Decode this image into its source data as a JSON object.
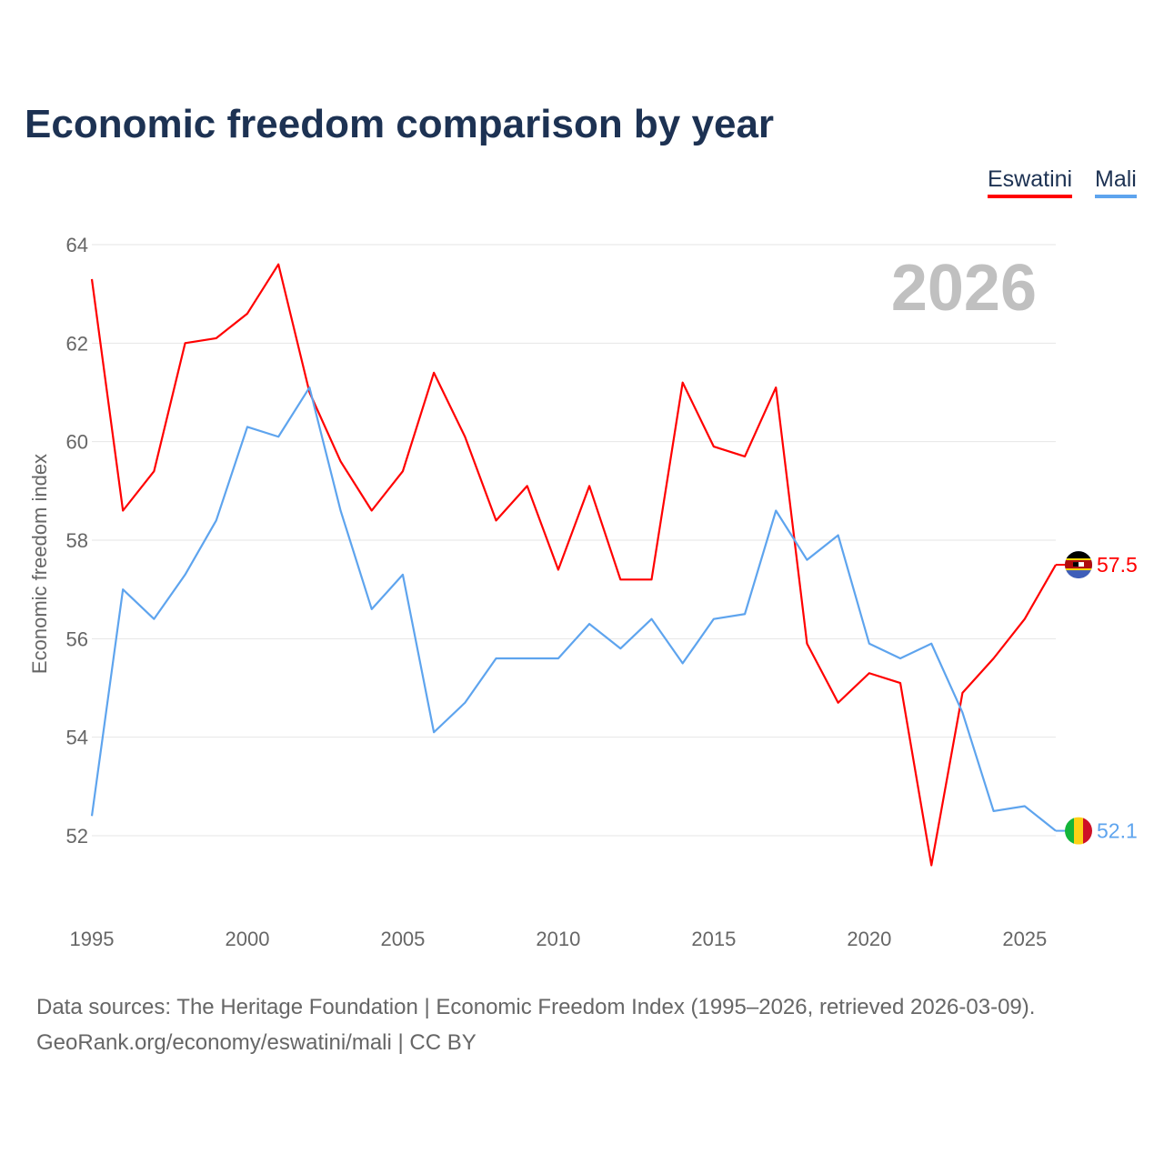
{
  "chart_data": {
    "type": "line",
    "title": "Economic freedom comparison by year",
    "xlabel": "",
    "ylabel": "Economic freedom index",
    "year_watermark": "2026",
    "x": [
      1995,
      1996,
      1997,
      1998,
      1999,
      2000,
      2001,
      2002,
      2003,
      2004,
      2005,
      2006,
      2007,
      2008,
      2009,
      2010,
      2011,
      2012,
      2013,
      2014,
      2015,
      2016,
      2017,
      2018,
      2019,
      2020,
      2021,
      2022,
      2023,
      2024,
      2025,
      2026
    ],
    "xticks": [
      "1995",
      "2000",
      "2005",
      "2010",
      "2015",
      "2020",
      "2025"
    ],
    "yticks": [
      "52",
      "54",
      "56",
      "58",
      "60",
      "62",
      "64"
    ],
    "ylim": [
      50.5,
      64
    ],
    "xlim": [
      1995,
      2026
    ],
    "grid": true,
    "legend_position": "top-right",
    "series": [
      {
        "name": "Eswatini",
        "color": "#ff0000",
        "end_label": "57.5",
        "values": [
          63.3,
          58.6,
          59.4,
          62.0,
          62.1,
          62.6,
          63.6,
          61.0,
          59.6,
          58.6,
          59.4,
          61.4,
          60.1,
          58.4,
          59.1,
          57.4,
          59.1,
          57.2,
          57.2,
          61.2,
          59.9,
          59.7,
          61.1,
          55.9,
          54.7,
          55.3,
          55.1,
          51.4,
          54.9,
          55.6,
          56.4,
          57.5
        ]
      },
      {
        "name": "Mali",
        "color": "#5ea4ee",
        "end_label": "52.1",
        "values": [
          52.4,
          57.0,
          56.4,
          57.3,
          58.4,
          60.3,
          60.1,
          61.1,
          58.6,
          56.6,
          57.3,
          54.1,
          54.7,
          55.6,
          55.6,
          55.6,
          56.3,
          55.8,
          56.4,
          55.5,
          56.4,
          56.5,
          58.6,
          57.6,
          58.1,
          55.9,
          55.6,
          55.9,
          54.5,
          52.5,
          52.6,
          52.1
        ]
      }
    ]
  },
  "source": {
    "line1": "Data sources: The Heritage Foundation | Economic Freedom Index (1995–2026, retrieved 2026-03-09).",
    "line2": "GeoRank.org/economy/eswatini/mali | CC BY"
  }
}
